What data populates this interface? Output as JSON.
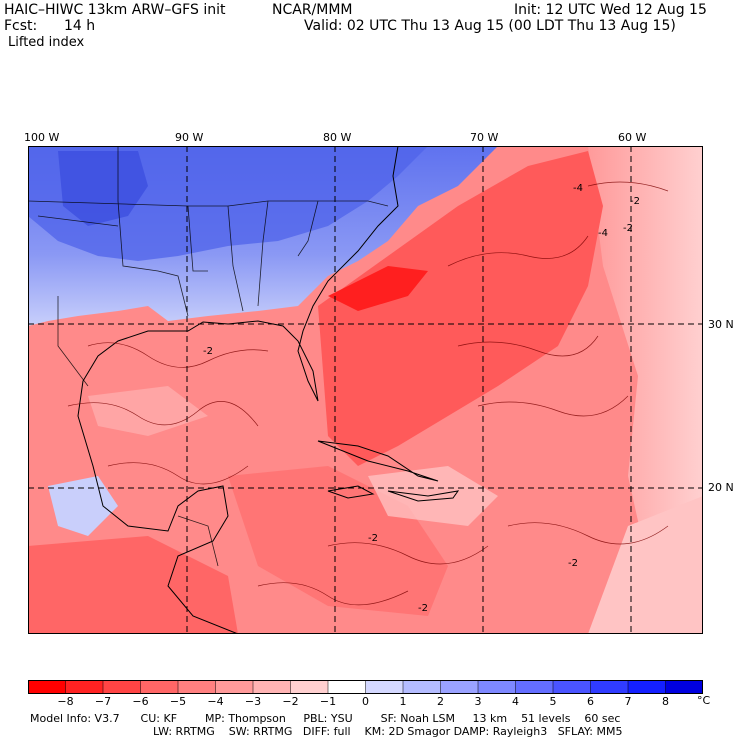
{
  "header": {
    "model": "HAIC–HIWC 13km ARW–GFS init",
    "center": "NCAR/MMM",
    "init": "Init: 12 UTC Wed 12 Aug 15",
    "fcst_label": "Fcst:",
    "fcst_value": "14 h",
    "valid": "Valid: 02 UTC Thu 13 Aug 15 (00 LDT Thu 13 Aug 15)",
    "field": "Lifted index"
  },
  "longitude_labels": [
    "100 W",
    "90 W",
    "80 W",
    "70 W",
    "60 W"
  ],
  "latitude_labels": [
    "30 N",
    "20 N"
  ],
  "colorbar": {
    "labels": [
      "−8",
      "−7",
      "−6",
      "−5",
      "−4",
      "−3",
      "−2",
      "−1",
      "0",
      "1",
      "2",
      "3",
      "4",
      "5",
      "6",
      "7",
      "8"
    ],
    "unit": "°C",
    "colors": [
      "#ff0000",
      "#ff2222",
      "#ff4444",
      "#ff6666",
      "#ff8080",
      "#ff9a9a",
      "#ffb4b4",
      "#ffd0d0",
      "#ffffff",
      "#d4d8ff",
      "#b4bcff",
      "#9aa2ff",
      "#7e88ff",
      "#646eff",
      "#4a54ff",
      "#303cff",
      "#1420ff",
      "#0000e0"
    ]
  },
  "footer": {
    "line1": "Model Info: V3.7      CU: KF        MP: Thompson     PBL: YSU        SF: Noah LSM     13 km    51 levels    60 sec",
    "line2": "LW: RRTMG    SW: RRTMG   DIFF: full    KM: 2D Smagor DAMP: Rayleigh3   SFLAY: MM5"
  },
  "map_annotations": [
    "-4",
    "-2",
    "-4",
    "-2",
    "-2",
    "-2",
    "-2",
    "-2"
  ]
}
